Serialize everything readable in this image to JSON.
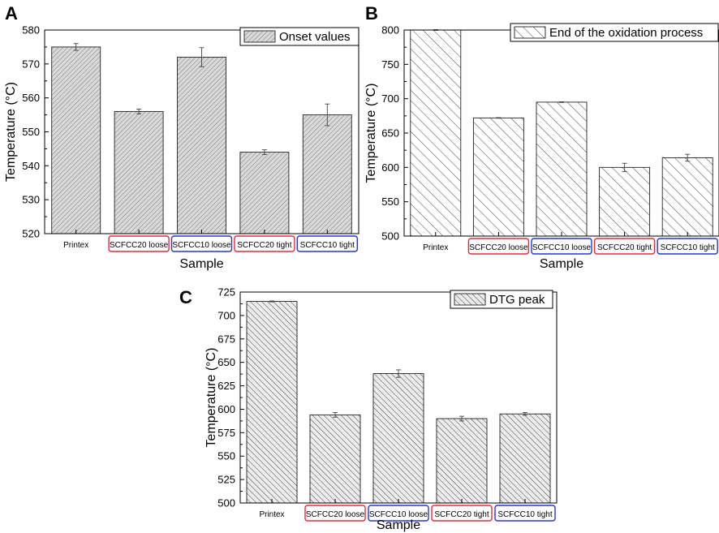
{
  "colors": {
    "red_box": "#e8283a",
    "blue_box": "#2733d6",
    "bar_fill": "#d9d9d9",
    "hatch": "#555555"
  },
  "chart_data": [
    {
      "panel": "A",
      "type": "bar",
      "legend": "Onset values",
      "pattern": "dense-hatch",
      "categories": [
        "Printex",
        "SCFCC20 loose",
        "SCFCC10 loose",
        "SCFCC20 tight",
        "SCFCC10 tight"
      ],
      "category_box_colors": [
        "none",
        "red",
        "blue",
        "red",
        "blue"
      ],
      "values": [
        575,
        556,
        572,
        544,
        555
      ],
      "errors": [
        1,
        0.7,
        2.8,
        0.7,
        3.2
      ],
      "xlabel": "Sample",
      "ylabel": "Temperature (°C)",
      "ylim": [
        520,
        580
      ],
      "yticks": [
        520,
        530,
        540,
        550,
        560,
        570,
        580
      ],
      "legend_position": "top-right"
    },
    {
      "panel": "B",
      "type": "bar",
      "legend": "End of the oxidation process",
      "pattern": "sparse-hatch",
      "categories": [
        "Printex",
        "SCFCC20 loose",
        "SCFCC10 loose",
        "SCFCC20 tight",
        "SCFCC10 tight"
      ],
      "category_box_colors": [
        "none",
        "red",
        "blue",
        "red",
        "blue"
      ],
      "values": [
        800,
        672,
        695,
        600,
        614
      ],
      "errors": [
        0.5,
        0.5,
        0.5,
        6,
        5
      ],
      "xlabel": "Sample",
      "ylabel": "Temperature (°C)",
      "ylim": [
        500,
        800
      ],
      "yticks": [
        500,
        550,
        600,
        650,
        700,
        750,
        800
      ],
      "legend_position": "top-right"
    },
    {
      "panel": "C",
      "type": "bar",
      "legend": "DTG peak",
      "pattern": "medium-hatch",
      "categories": [
        "Printex",
        "SCFCC20 loose",
        "SCFCC10 loose",
        "SCFCC20 tight",
        "SCFCC10 tight"
      ],
      "category_box_colors": [
        "none",
        "red",
        "blue",
        "red",
        "blue"
      ],
      "values": [
        715,
        594,
        638,
        590,
        595
      ],
      "errors": [
        0.5,
        2.5,
        4,
        2.5,
        1.5
      ],
      "xlabel": "Sample",
      "ylabel": "Temperature (°C)",
      "ylim": [
        500,
        725
      ],
      "yticks": [
        500,
        525,
        550,
        575,
        600,
        625,
        650,
        675,
        700,
        725
      ],
      "legend_position": "top-right"
    }
  ]
}
